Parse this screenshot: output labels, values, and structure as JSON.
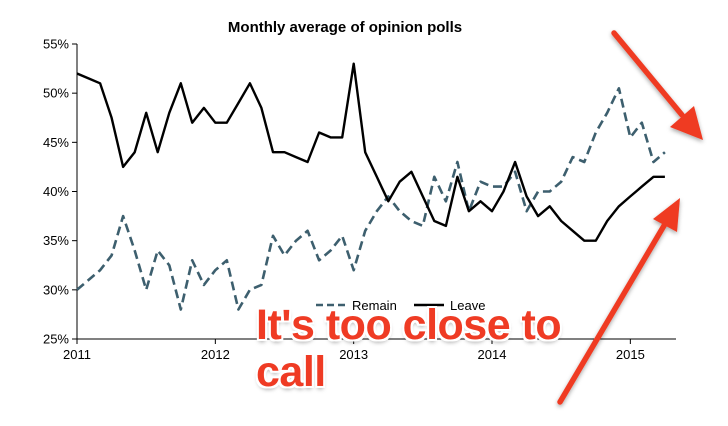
{
  "chart_data": {
    "type": "line",
    "title": "Monthly average of opinion polls",
    "xlabel": "",
    "ylabel": "",
    "x_ticks": [
      "2011",
      "2012",
      "2013",
      "2014",
      "2015"
    ],
    "y_ticks": [
      "25%",
      "30%",
      "35%",
      "40%",
      "45%",
      "50%",
      "55%"
    ],
    "ylim": [
      25,
      55
    ],
    "xlim": [
      2011.0,
      2015.33
    ],
    "grid": false,
    "legend_position": "bottom-center",
    "series": [
      {
        "name": "Remain",
        "style": "dashed",
        "color": "#3d5f6e",
        "x": [
          2011.0,
          2011.083,
          2011.167,
          2011.25,
          2011.333,
          2011.417,
          2011.5,
          2011.583,
          2011.667,
          2011.75,
          2011.833,
          2011.917,
          2012.0,
          2012.083,
          2012.167,
          2012.25,
          2012.333,
          2012.417,
          2012.5,
          2012.583,
          2012.667,
          2012.75,
          2012.833,
          2012.917,
          2013.0,
          2013.083,
          2013.167,
          2013.25,
          2013.333,
          2013.417,
          2013.5,
          2013.583,
          2013.667,
          2013.75,
          2013.833,
          2013.917,
          2014.0,
          2014.083,
          2014.167,
          2014.25,
          2014.333,
          2014.417,
          2014.5,
          2014.583,
          2014.667,
          2014.75,
          2014.833,
          2014.917,
          2015.0,
          2015.083,
          2015.167,
          2015.25
        ],
        "y": [
          30.0,
          31.0,
          32.0,
          33.5,
          37.5,
          34.0,
          30.0,
          34.0,
          32.5,
          28.0,
          33.0,
          30.5,
          32.0,
          33.0,
          28.0,
          30.0,
          30.5,
          35.5,
          33.5,
          35.0,
          36.0,
          33.0,
          34.0,
          35.5,
          32.0,
          36.0,
          38.0,
          39.5,
          38.0,
          37.0,
          36.5,
          41.5,
          39.0,
          43.0,
          38.0,
          41.0,
          40.5,
          40.5,
          42.0,
          38.0,
          40.0,
          40.0,
          41.0,
          43.5,
          43.0,
          46.0,
          48.0,
          50.5,
          45.5,
          47.0,
          43.0,
          44.0
        ]
      },
      {
        "name": "Leave",
        "style": "solid",
        "color": "#000000",
        "x": [
          2011.0,
          2011.083,
          2011.167,
          2011.25,
          2011.333,
          2011.417,
          2011.5,
          2011.583,
          2011.667,
          2011.75,
          2011.833,
          2011.917,
          2012.0,
          2012.083,
          2012.167,
          2012.25,
          2012.333,
          2012.417,
          2012.5,
          2012.583,
          2012.667,
          2012.75,
          2012.833,
          2012.917,
          2013.0,
          2013.083,
          2013.167,
          2013.25,
          2013.333,
          2013.417,
          2013.5,
          2013.583,
          2013.667,
          2013.75,
          2013.833,
          2013.917,
          2014.0,
          2014.083,
          2014.167,
          2014.25,
          2014.333,
          2014.417,
          2014.5,
          2014.583,
          2014.667,
          2014.75,
          2014.833,
          2014.917,
          2015.0,
          2015.083,
          2015.167,
          2015.25
        ],
        "y": [
          52.0,
          51.5,
          51.0,
          47.5,
          42.5,
          44.0,
          48.0,
          44.0,
          48.0,
          51.0,
          47.0,
          48.5,
          47.0,
          47.0,
          49.0,
          51.0,
          48.5,
          44.0,
          44.0,
          43.5,
          43.0,
          46.0,
          45.5,
          45.5,
          53.0,
          44.0,
          41.5,
          39.0,
          41.0,
          42.0,
          39.5,
          37.0,
          36.5,
          41.5,
          38.0,
          39.0,
          38.0,
          40.0,
          43.0,
          39.5,
          37.5,
          38.5,
          37.0,
          36.0,
          35.0,
          35.0,
          37.0,
          38.5,
          39.5,
          40.5,
          41.5,
          41.5
        ]
      }
    ]
  },
  "annotation": {
    "line1": "It's too close to",
    "line2": "call",
    "color": "#ef3b24"
  }
}
